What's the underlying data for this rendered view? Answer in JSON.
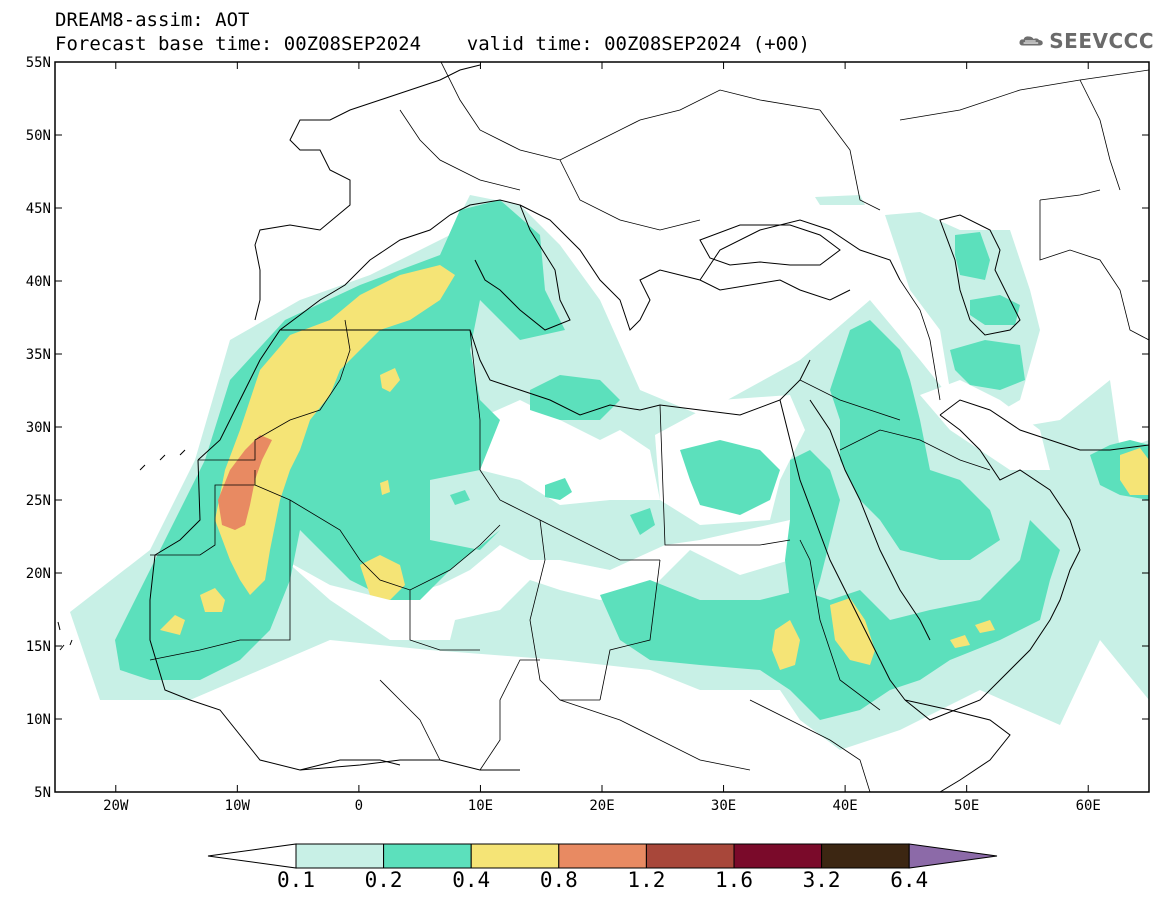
{
  "header": {
    "line1": "DREAM8-assim: AOT",
    "line2": "Forecast base time: 00Z08SEP2024    valid time: 00Z08SEP2024 (+00)"
  },
  "logo": {
    "text": "SEEVCCC",
    "icon": "cloud-icon"
  },
  "map": {
    "lon_range": [
      -25,
      65
    ],
    "lat_range": [
      5,
      55
    ],
    "lat_labels": [
      "55N",
      "50N",
      "45N",
      "40N",
      "35N",
      "30N",
      "25N",
      "20N",
      "15N",
      "10N",
      "5N"
    ],
    "lon_labels": [
      "20W",
      "10W",
      "0",
      "10E",
      "20E",
      "30E",
      "40E",
      "50E",
      "60E"
    ]
  },
  "colorbar": {
    "levels": [
      "0.1",
      "0.2",
      "0.4",
      "0.8",
      "1.2",
      "1.6",
      "3.2",
      "6.4"
    ],
    "colors": [
      "#c8f0e6",
      "#5ce0bc",
      "#f5e476",
      "#e88a62",
      "#a8473a",
      "#7a0a2a",
      "#3c2612",
      "#8c6aa8"
    ]
  }
}
